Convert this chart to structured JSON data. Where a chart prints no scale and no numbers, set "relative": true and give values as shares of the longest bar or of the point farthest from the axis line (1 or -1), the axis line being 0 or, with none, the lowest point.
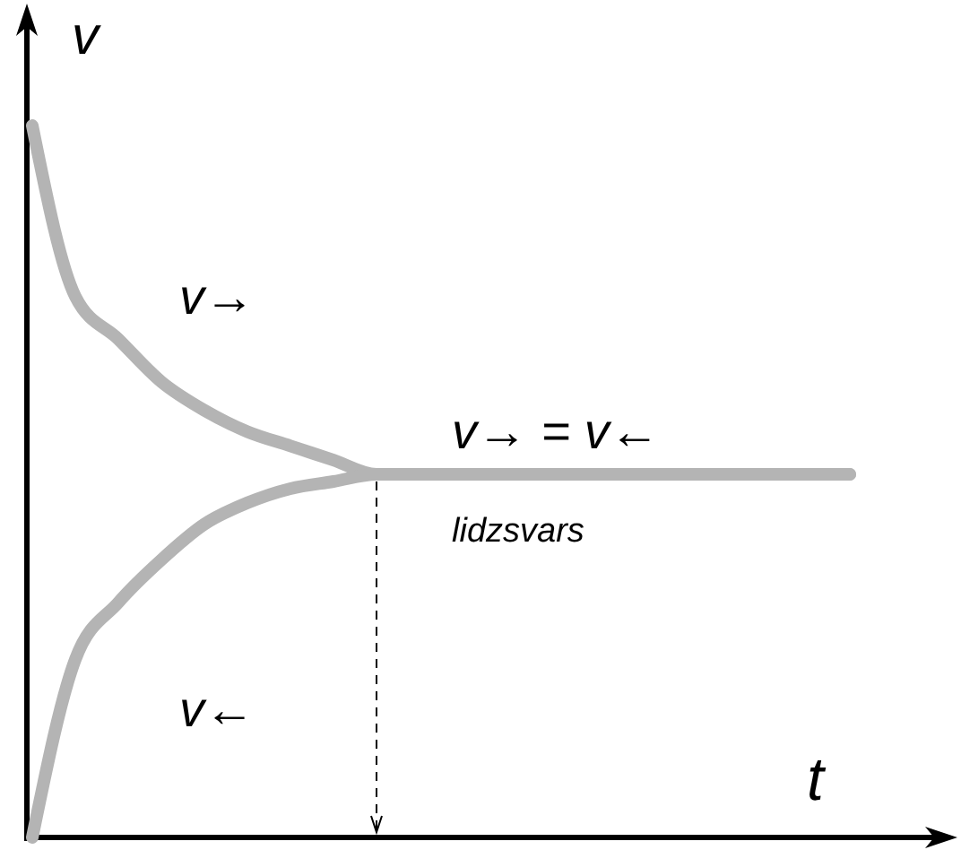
{
  "chart_data": {
    "type": "line",
    "relative": true,
    "xlabel": "t",
    "ylabel": "v",
    "line_style": "solid",
    "categories": [
      null,
      null,
      null,
      null,
      null,
      null,
      null,
      null,
      null,
      null,
      null,
      null,
      null,
      null,
      null,
      null,
      null,
      null,
      null,
      null
    ],
    "series": [
      {
        "name": "v→",
        "color": "#b4b4b4",
        "values": [
          1.0,
          0.76,
          0.7,
          0.64,
          0.6,
          0.57,
          0.55,
          0.53,
          0.51,
          0.51,
          0.51,
          0.51,
          0.51,
          0.51,
          0.51,
          0.51,
          0.51,
          0.51,
          0.51,
          0.51
        ]
      },
      {
        "name": "v←",
        "color": "#b4b4b4",
        "values": [
          0.0,
          0.25,
          0.33,
          0.39,
          0.44,
          0.47,
          0.49,
          0.5,
          0.51,
          0.51,
          0.51,
          0.51,
          0.51,
          0.51,
          0.51,
          0.51,
          0.51,
          0.51,
          0.51,
          0.51
        ]
      }
    ],
    "annotations": [
      "v→ = v←",
      "lidzsvars"
    ]
  }
}
